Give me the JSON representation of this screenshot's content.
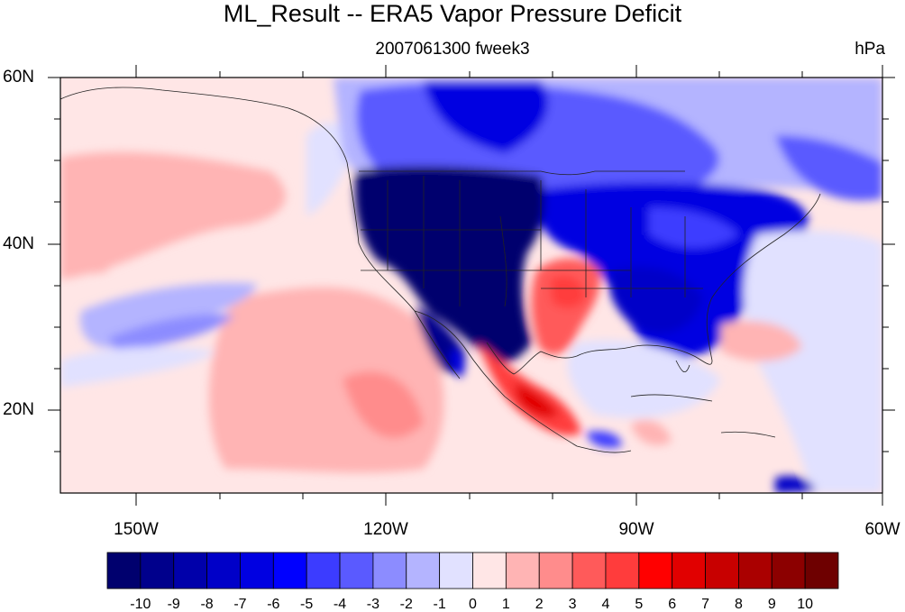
{
  "title": "ML_Result -- ERA5 Vapor Pressure Deficit",
  "subtitle": "2007061300 fweek3",
  "units": "hPa",
  "lat_labels": [
    "60N",
    "40N",
    "20N"
  ],
  "lon_labels": [
    "150W",
    "120W",
    "90W",
    "60W"
  ],
  "colorbar": {
    "labels": [
      "-10",
      "-9",
      "-8",
      "-7",
      "-6",
      "-5",
      "-4",
      "-3",
      "-2",
      "-1",
      "0",
      "1",
      "2",
      "3",
      "4",
      "5",
      "6",
      "7",
      "8",
      "9",
      "10"
    ],
    "colors": [
      "#00006e",
      "#00008c",
      "#0000aa",
      "#0000c8",
      "#0000e1",
      "#0000ff",
      "#3c3cff",
      "#5a5aff",
      "#8c8cff",
      "#b4b4ff",
      "#e1e1ff",
      "#ffe6e6",
      "#ffb4b4",
      "#ff8c8c",
      "#ff5a5a",
      "#ff3c3c",
      "#ff0000",
      "#e10000",
      "#c80000",
      "#aa0000",
      "#8c0000",
      "#6e0000"
    ]
  },
  "map": {
    "lat_range": [
      10,
      60
    ],
    "lon_range": [
      -159,
      -60
    ]
  }
}
